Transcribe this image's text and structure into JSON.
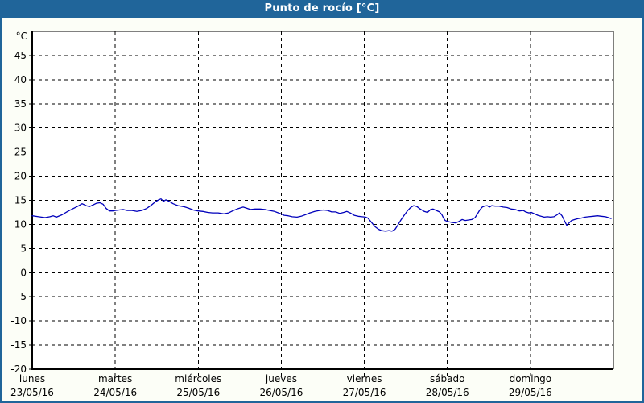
{
  "window": {
    "title": "Punto de rocío [°C]",
    "colors": {
      "accent": "#20659a",
      "titlebar_text": "#ffffff",
      "paper": "#fcfef7",
      "plot_bg": "#ffffff",
      "grid": "#000000",
      "line": "#0000bb",
      "label_text": "#000000"
    }
  },
  "chart_data": {
    "type": "line",
    "title": "Punto de rocío [°C]",
    "legend": "none",
    "grid": "dashed",
    "y_axis": {
      "unit": "°C",
      "min": -20,
      "max": 50,
      "tick_step": 5,
      "tick_labels": [
        "45",
        "40",
        "35",
        "30",
        "25",
        "20",
        "15",
        "10",
        "5",
        "0",
        "-5",
        "-10",
        "-15",
        "-20"
      ]
    },
    "x_axis": {
      "num_days": 7,
      "days": [
        {
          "name": "lunes",
          "date": "23/05/16"
        },
        {
          "name": "martes",
          "date": "24/05/16"
        },
        {
          "name": "miércoles",
          "date": "25/05/16"
        },
        {
          "name": "jueves",
          "date": "26/05/16"
        },
        {
          "name": "viernes",
          "date": "27/05/16"
        },
        {
          "name": "sábado",
          "date": "28/05/16"
        },
        {
          "name": "domingo",
          "date": "29/05/16"
        }
      ]
    },
    "series": [
      {
        "name": "Punto de rocío",
        "x_unit": "days_from_start",
        "points": [
          [
            0.0,
            11.8
          ],
          [
            0.078,
            11.6
          ],
          [
            0.155,
            11.4
          ],
          [
            0.213,
            11.6
          ],
          [
            0.252,
            11.8
          ],
          [
            0.291,
            11.5
          ],
          [
            0.359,
            12.0
          ],
          [
            0.427,
            12.7
          ],
          [
            0.494,
            13.3
          ],
          [
            0.553,
            13.8
          ],
          [
            0.601,
            14.3
          ],
          [
            0.65,
            13.9
          ],
          [
            0.688,
            13.7
          ],
          [
            0.727,
            14.0
          ],
          [
            0.776,
            14.4
          ],
          [
            0.814,
            14.5
          ],
          [
            0.853,
            14.2
          ],
          [
            0.892,
            13.3
          ],
          [
            0.931,
            12.8
          ],
          [
            0.97,
            12.8
          ],
          [
            1.0,
            12.9
          ],
          [
            1.047,
            13.0
          ],
          [
            1.096,
            13.1
          ],
          [
            1.144,
            12.9
          ],
          [
            1.202,
            12.9
          ],
          [
            1.26,
            12.7
          ],
          [
            1.319,
            12.9
          ],
          [
            1.377,
            13.3
          ],
          [
            1.435,
            14.0
          ],
          [
            1.483,
            14.7
          ],
          [
            1.522,
            15.1
          ],
          [
            1.551,
            15.3
          ],
          [
            1.58,
            14.8
          ],
          [
            1.609,
            15.1
          ],
          [
            1.648,
            14.8
          ],
          [
            1.697,
            14.3
          ],
          [
            1.755,
            13.9
          ],
          [
            1.823,
            13.7
          ],
          [
            1.881,
            13.4
          ],
          [
            1.939,
            13.0
          ],
          [
            1.997,
            12.8
          ],
          [
            2.055,
            12.7
          ],
          [
            2.114,
            12.5
          ],
          [
            2.172,
            12.4
          ],
          [
            2.24,
            12.4
          ],
          [
            2.307,
            12.2
          ],
          [
            2.366,
            12.4
          ],
          [
            2.424,
            12.9
          ],
          [
            2.482,
            13.3
          ],
          [
            2.54,
            13.6
          ],
          [
            2.579,
            13.4
          ],
          [
            2.627,
            13.1
          ],
          [
            2.686,
            13.2
          ],
          [
            2.744,
            13.2
          ],
          [
            2.802,
            13.1
          ],
          [
            2.86,
            12.9
          ],
          [
            2.918,
            12.7
          ],
          [
            2.966,
            12.4
          ],
          [
            2.996,
            12.2
          ],
          [
            3.035,
            11.9
          ],
          [
            3.083,
            11.8
          ],
          [
            3.132,
            11.6
          ],
          [
            3.19,
            11.5
          ],
          [
            3.238,
            11.7
          ],
          [
            3.287,
            12.0
          ],
          [
            3.345,
            12.4
          ],
          [
            3.403,
            12.7
          ],
          [
            3.461,
            12.9
          ],
          [
            3.51,
            13.0
          ],
          [
            3.558,
            12.9
          ],
          [
            3.607,
            12.6
          ],
          [
            3.655,
            12.6
          ],
          [
            3.703,
            12.3
          ],
          [
            3.752,
            12.5
          ],
          [
            3.79,
            12.7
          ],
          [
            3.829,
            12.4
          ],
          [
            3.878,
            11.9
          ],
          [
            3.926,
            11.7
          ],
          [
            3.975,
            11.6
          ],
          [
            4.014,
            11.5
          ],
          [
            4.043,
            11.3
          ],
          [
            4.072,
            10.7
          ],
          [
            4.101,
            10.1
          ],
          [
            4.13,
            9.5
          ],
          [
            4.169,
            9.0
          ],
          [
            4.207,
            8.7
          ],
          [
            4.256,
            8.6
          ],
          [
            4.295,
            8.7
          ],
          [
            4.334,
            8.6
          ],
          [
            4.372,
            9.0
          ],
          [
            4.402,
            9.8
          ],
          [
            4.44,
            10.9
          ],
          [
            4.479,
            11.9
          ],
          [
            4.518,
            12.8
          ],
          [
            4.557,
            13.5
          ],
          [
            4.596,
            13.9
          ],
          [
            4.634,
            13.7
          ],
          [
            4.673,
            13.2
          ],
          [
            4.722,
            12.7
          ],
          [
            4.76,
            12.5
          ],
          [
            4.799,
            13.1
          ],
          [
            4.828,
            13.2
          ],
          [
            4.867,
            12.9
          ],
          [
            4.906,
            12.6
          ],
          [
            4.935,
            12.0
          ],
          [
            4.954,
            11.3
          ],
          [
            4.974,
            10.8
          ],
          [
            5.003,
            10.6
          ],
          [
            5.051,
            10.4
          ],
          [
            5.1,
            10.3
          ],
          [
            5.139,
            10.6
          ],
          [
            5.177,
            11.0
          ],
          [
            5.216,
            10.8
          ],
          [
            5.255,
            10.9
          ],
          [
            5.294,
            11.0
          ],
          [
            5.333,
            11.4
          ],
          [
            5.362,
            12.2
          ],
          [
            5.391,
            13.0
          ],
          [
            5.42,
            13.6
          ],
          [
            5.449,
            13.8
          ],
          [
            5.478,
            13.9
          ],
          [
            5.507,
            13.6
          ],
          [
            5.536,
            13.9
          ],
          [
            5.575,
            13.8
          ],
          [
            5.623,
            13.8
          ],
          [
            5.672,
            13.6
          ],
          [
            5.72,
            13.5
          ],
          [
            5.769,
            13.2
          ],
          [
            5.817,
            13.1
          ],
          [
            5.866,
            12.8
          ],
          [
            5.914,
            12.9
          ],
          [
            5.943,
            12.6
          ],
          [
            5.982,
            12.4
          ],
          [
            6.011,
            12.5
          ],
          [
            6.05,
            12.2
          ],
          [
            6.089,
            11.9
          ],
          [
            6.127,
            11.7
          ],
          [
            6.166,
            11.5
          ],
          [
            6.205,
            11.6
          ],
          [
            6.244,
            11.5
          ],
          [
            6.283,
            11.6
          ],
          [
            6.321,
            12.0
          ],
          [
            6.35,
            12.4
          ],
          [
            6.38,
            11.8
          ],
          [
            6.409,
            10.8
          ],
          [
            6.438,
            9.8
          ],
          [
            6.467,
            10.3
          ],
          [
            6.496,
            10.8
          ],
          [
            6.534,
            11.0
          ],
          [
            6.573,
            11.2
          ],
          [
            6.612,
            11.3
          ],
          [
            6.66,
            11.5
          ],
          [
            6.699,
            11.6
          ],
          [
            6.757,
            11.7
          ],
          [
            6.806,
            11.8
          ],
          [
            6.854,
            11.7
          ],
          [
            6.903,
            11.6
          ],
          [
            6.941,
            11.4
          ],
          [
            6.971,
            11.2
          ]
        ]
      }
    ]
  }
}
